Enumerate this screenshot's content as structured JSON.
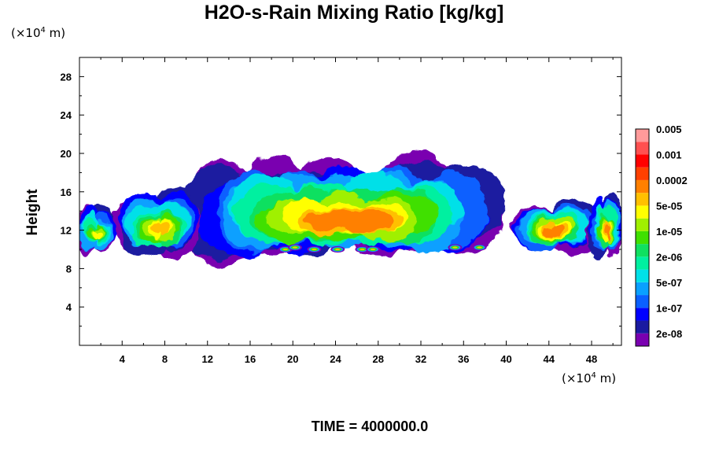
{
  "chart_data": {
    "type": "heatmap",
    "title": "H2O-s-Rain Mixing Ratio [kg/kg]",
    "ylabel": "Height",
    "x_unit": "(×10⁴ m)",
    "y_unit": "(×10⁴ m)",
    "x_unit_base": "(×10",
    "x_unit_exp": "4",
    "x_unit_tail": " m)",
    "y_unit_base": "(×10",
    "y_unit_exp": "4",
    "y_unit_tail": " m)",
    "xlim": [
      0,
      50.8
    ],
    "ylim": [
      0,
      30
    ],
    "x_ticks": [
      4,
      8,
      12,
      16,
      20,
      24,
      28,
      32,
      36,
      40,
      44,
      48
    ],
    "y_ticks": [
      4,
      8,
      12,
      16,
      20,
      24,
      28
    ],
    "time_label": "TIME = 4000000.0",
    "colorbar": {
      "levels_colors": [
        "#7a00b0",
        "#1a1aa0",
        "#0000ff",
        "#0a60ff",
        "#0aa0ff",
        "#00e0e8",
        "#00f0a0",
        "#10e060",
        "#40e000",
        "#a0f000",
        "#ffff00",
        "#ffc000",
        "#ff8000",
        "#ff4000",
        "#ff0000",
        "#ff5050",
        "#ff9a9a"
      ],
      "labels": [
        "2e-08",
        "1e-07",
        "5e-07",
        "2e-06",
        "1e-05",
        "5e-05",
        "0.0002",
        "0.001",
        "0.005"
      ]
    },
    "field_regions": [
      {
        "x0": 10.5,
        "x1": 39.5,
        "y0": 10.0,
        "y1": 20.0,
        "peak_level": 12
      },
      {
        "x0": 4.0,
        "x1": 11.0,
        "y0": 10.0,
        "y1": 16.5,
        "peak_level": 11
      },
      {
        "x0": 0.0,
        "x1": 3.0,
        "y0": 10.0,
        "y1": 15.0,
        "peak_level": 10
      },
      {
        "x0": 41.0,
        "x1": 48.0,
        "y0": 10.5,
        "y1": 15.5,
        "peak_level": 12
      },
      {
        "x0": 48.0,
        "x1": 50.8,
        "y0": 10.0,
        "y1": 16.0,
        "peak_level": 12
      }
    ]
  }
}
